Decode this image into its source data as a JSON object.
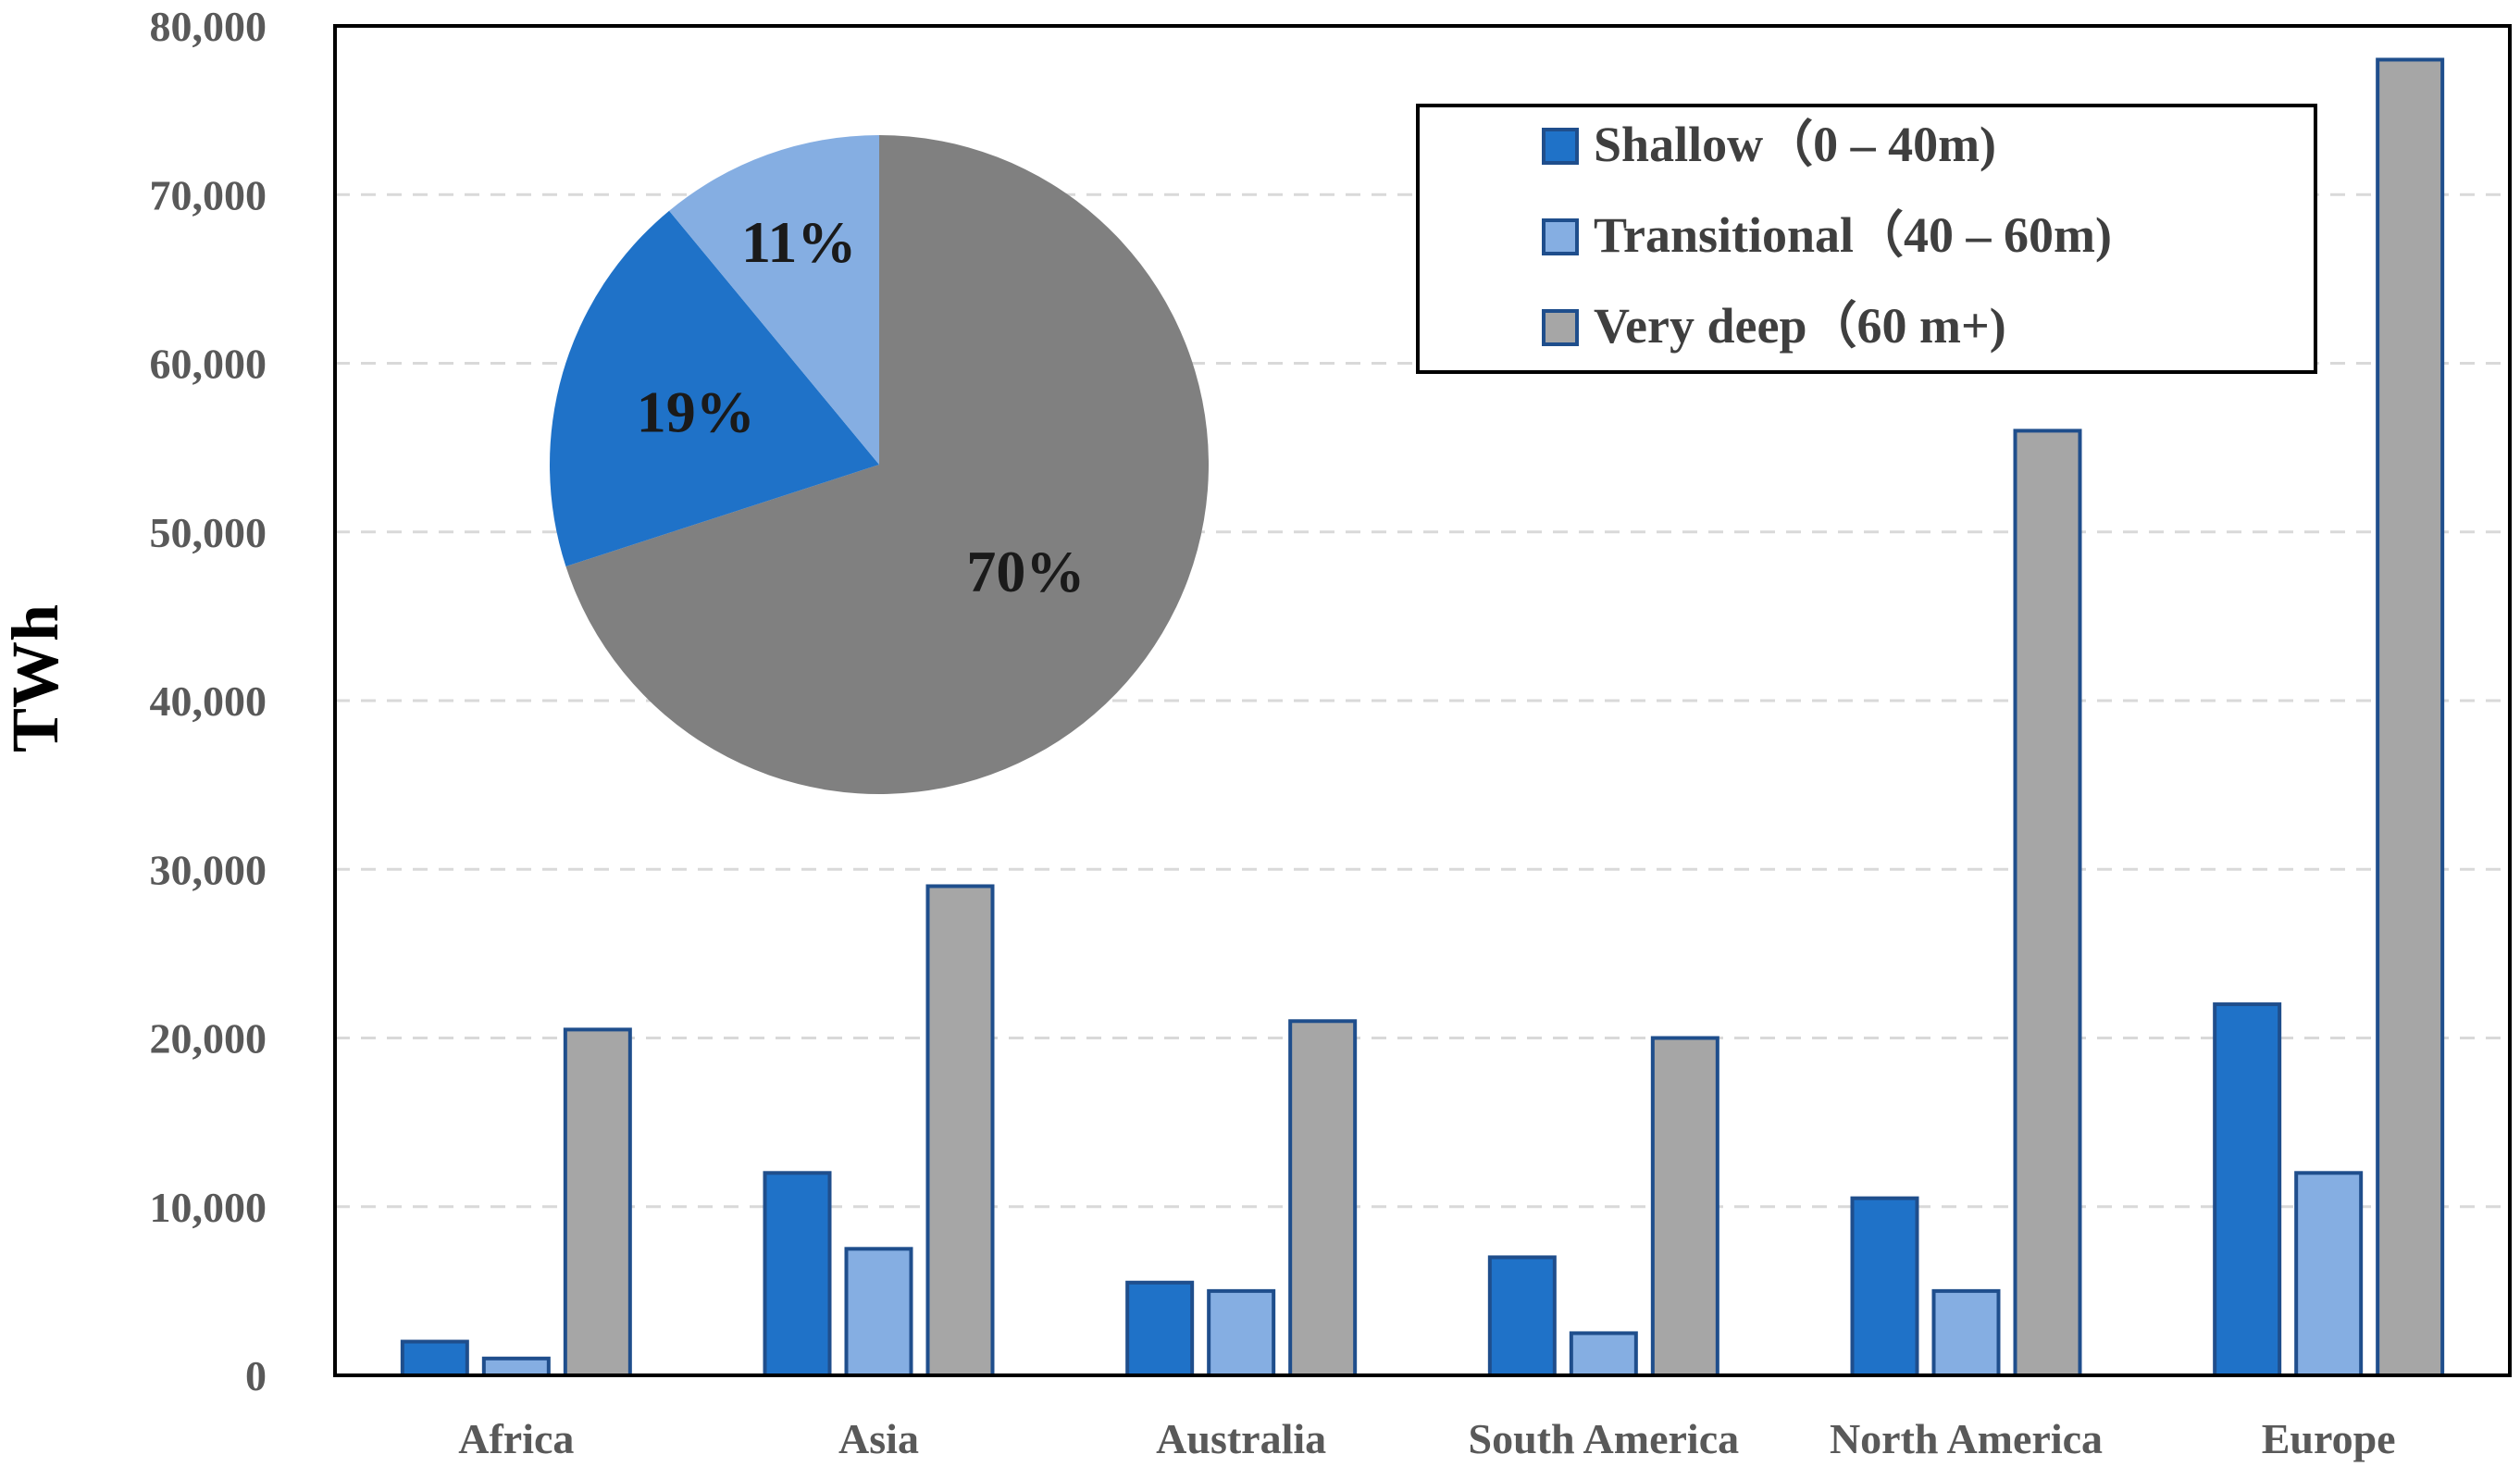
{
  "chart_data": [
    {
      "type": "bar",
      "ylabel": "TWh",
      "xlabel": "",
      "ylim": [
        0,
        80000
      ],
      "yticks": [
        0,
        10000,
        20000,
        30000,
        40000,
        50000,
        60000,
        70000,
        80000
      ],
      "ytick_labels": [
        "0",
        "10,000",
        "20,000",
        "30,000",
        "40,000",
        "50,000",
        "60,000",
        "70,000",
        "80,000"
      ],
      "grid": "horizontal dashed",
      "legend_position": "top-right",
      "categories": [
        "Africa",
        "Asia",
        "Australia",
        "South America",
        "North America",
        "Europe"
      ],
      "series": [
        {
          "name": "Shallow（0 – 40m)",
          "color": "#1f72c8",
          "values": [
            2000,
            12000,
            5500,
            7000,
            10500,
            22000
          ]
        },
        {
          "name": "Transitional（40 – 60m)",
          "color": "#85aee2",
          "values": [
            1000,
            7500,
            5000,
            2500,
            5000,
            12000
          ]
        },
        {
          "name": "Very deep（60 m+)",
          "color": "#a6a6a6",
          "values": [
            20500,
            29000,
            21000,
            20000,
            56000,
            78000
          ]
        }
      ],
      "bar_edge_color": "#1f4e8c"
    },
    {
      "type": "pie",
      "slices": [
        {
          "name": "Very deep",
          "value": 70,
          "label": "70%",
          "color": "#808080"
        },
        {
          "name": "Shallow",
          "value": 19,
          "label": "19%",
          "color": "#1f72c8"
        },
        {
          "name": "Transitional",
          "value": 11,
          "label": "11%",
          "color": "#85aee2"
        }
      ]
    }
  ]
}
